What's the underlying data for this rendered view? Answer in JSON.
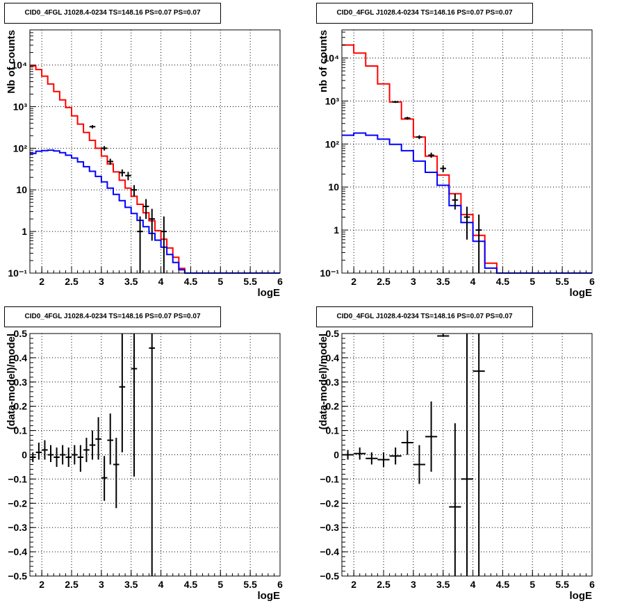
{
  "chart_data": [
    {
      "type": "step",
      "title": "CID0_4FGL J1028.4-0234 TS=148.16 PS=0.07 PS=0.07",
      "xlabel": "logE",
      "ylabel": "Nb of counts",
      "xlim": [
        1.8,
        6.0
      ],
      "ylim": [
        0.1,
        70000
      ],
      "yscale": "log",
      "grid": true,
      "xticks": [
        "2",
        "2.5",
        "3",
        "3.5",
        "4",
        "4.5",
        "5",
        "5.5",
        "6"
      ],
      "xtick_values": [
        2,
        2.5,
        3,
        3.5,
        4,
        4.5,
        5,
        5.5,
        6
      ],
      "yticks": [
        "10⁻¹",
        "1",
        "10",
        "10²",
        "10³",
        "10⁴"
      ],
      "ytick_values": [
        0.1,
        1,
        10,
        100,
        1000,
        10000
      ],
      "bin_edges": [
        1.8,
        1.9,
        2.0,
        2.1,
        2.2,
        2.3,
        2.4,
        2.5,
        2.6,
        2.7,
        2.8,
        2.9,
        3.0,
        3.1,
        3.2,
        3.3,
        3.4,
        3.5,
        3.6,
        3.7,
        3.8,
        3.9,
        4.0,
        4.1,
        4.2,
        4.3,
        4.4,
        4.5,
        4.6,
        4.7,
        4.8,
        4.9,
        5.0,
        5.1,
        5.2,
        5.3,
        5.4,
        5.5,
        5.6,
        5.7,
        5.8,
        5.9,
        6.0
      ],
      "series": [
        {
          "color": "#ff0000",
          "values": [
            9500,
            7800,
            5400,
            3500,
            2300,
            1450,
            950,
            600,
            380,
            240,
            155,
            100,
            65,
            42,
            27,
            17,
            11,
            7,
            4.5,
            2.8,
            1.8,
            1.05,
            0.65,
            0.4,
            0.24,
            0.13,
            0.1,
            0.1,
            0.1,
            0.1,
            0.1,
            0.1,
            0.1,
            0.1,
            0.1,
            0.1,
            0.1,
            0.1,
            0.1,
            0.1,
            0.1,
            0.1
          ]
        },
        {
          "color": "#0000ff",
          "values": [
            75,
            85,
            88,
            90,
            86,
            78,
            68,
            58,
            47,
            36,
            28,
            21,
            15.5,
            11,
            7.8,
            5.5,
            3.8,
            2.7,
            1.85,
            1.3,
            0.9,
            0.62,
            0.42,
            0.28,
            0.18,
            0.12,
            0.1,
            0.1,
            0.1,
            0.1,
            0.1,
            0.1,
            0.1,
            0.1,
            0.1,
            0.1,
            0.1,
            0.1,
            0.1,
            0.1,
            0.1,
            0.1
          ]
        }
      ],
      "points": [
        {
          "x": 2.85,
          "y": 330,
          "ylo": 300,
          "yhi": 360
        },
        {
          "x": 3.05,
          "y": 100,
          "ylo": 88,
          "yhi": 113
        },
        {
          "x": 3.15,
          "y": 48,
          "ylo": 40,
          "yhi": 56
        },
        {
          "x": 3.35,
          "y": 26,
          "ylo": 21,
          "yhi": 31
        },
        {
          "x": 3.45,
          "y": 22,
          "ylo": 17,
          "yhi": 27
        },
        {
          "x": 3.55,
          "y": 10,
          "ylo": 7,
          "yhi": 13
        },
        {
          "x": 3.65,
          "y": 1,
          "ylo": 0.1,
          "yhi": 2.3
        },
        {
          "x": 3.75,
          "y": 4,
          "ylo": 2,
          "yhi": 6
        },
        {
          "x": 3.85,
          "y": 2,
          "ylo": 0.6,
          "yhi": 3.5
        },
        {
          "x": 4.05,
          "y": 1,
          "ylo": 0.1,
          "yhi": 2.3
        }
      ]
    },
    {
      "type": "step",
      "title": "CID0_4FGL J1028.4-0234 TS=148.16 PS=0.07 PS=0.07",
      "xlabel": "logE",
      "ylabel": "nb of counts",
      "xlim": [
        1.8,
        6.0
      ],
      "ylim": [
        0.1,
        45000
      ],
      "yscale": "log",
      "grid": true,
      "xticks": [
        "2",
        "2.5",
        "3",
        "3.5",
        "4",
        "4.5",
        "5",
        "5.5",
        "6"
      ],
      "xtick_values": [
        2,
        2.5,
        3,
        3.5,
        4,
        4.5,
        5,
        5.5,
        6
      ],
      "yticks": [
        "10⁻¹",
        "1",
        "10",
        "10²",
        "10³",
        "10⁴"
      ],
      "ytick_values": [
        0.1,
        1,
        10,
        100,
        1000,
        10000
      ],
      "bin_edges": [
        1.8,
        2.0,
        2.2,
        2.4,
        2.6,
        2.8,
        3.0,
        3.2,
        3.4,
        3.6,
        3.8,
        4.0,
        4.2,
        4.4,
        4.6,
        4.8,
        5.0,
        5.2,
        5.4,
        5.6,
        5.8,
        6.0
      ],
      "series": [
        {
          "color": "#ff0000",
          "values": [
            20000,
            13000,
            6500,
            2500,
            950,
            380,
            145,
            52,
            19,
            7,
            2.3,
            0.75,
            0.17,
            0.1,
            0.1,
            0.1,
            0.1,
            0.1,
            0.1,
            0.1,
            0.1
          ]
        },
        {
          "color": "#0000ff",
          "values": [
            160,
            180,
            160,
            130,
            98,
            70,
            40,
            22,
            11,
            3.7,
            1.5,
            0.55,
            0.13,
            0.1,
            0.1,
            0.1,
            0.1,
            0.1,
            0.1,
            0.1,
            0.1
          ]
        }
      ],
      "points": [
        {
          "x": 2.7,
          "y": 950,
          "ylo": 900,
          "yhi": 1000
        },
        {
          "x": 2.9,
          "y": 400,
          "ylo": 370,
          "yhi": 430
        },
        {
          "x": 3.1,
          "y": 145,
          "ylo": 130,
          "yhi": 160
        },
        {
          "x": 3.3,
          "y": 55,
          "ylo": 48,
          "yhi": 63
        },
        {
          "x": 3.5,
          "y": 27,
          "ylo": 22,
          "yhi": 32
        },
        {
          "x": 3.7,
          "y": 5,
          "ylo": 3,
          "yhi": 7
        },
        {
          "x": 3.9,
          "y": 2,
          "ylo": 0.6,
          "yhi": 3.5
        },
        {
          "x": 4.1,
          "y": 1,
          "ylo": 0.1,
          "yhi": 2.3
        }
      ]
    },
    {
      "type": "scatter",
      "title": "CID0_4FGL J1028.4-0234 TS=148.16 PS=0.07 PS=0.07",
      "xlabel": "logE",
      "ylabel": "(data-model)/model",
      "xlim": [
        1.8,
        6.0
      ],
      "ylim": [
        -0.5,
        0.5
      ],
      "yscale": "linear",
      "grid": true,
      "xticks": [
        "2",
        "2.5",
        "3",
        "3.5",
        "4",
        "4.5",
        "5",
        "5.5",
        "6"
      ],
      "xtick_values": [
        2,
        2.5,
        3,
        3.5,
        4,
        4.5,
        5,
        5.5,
        6
      ],
      "yticks": [
        "−0.5",
        "−0.4",
        "−0.3",
        "−0.2",
        "−0.1",
        "0",
        "0.1",
        "0.2",
        "0.3",
        "0.4",
        "0.5"
      ],
      "ytick_values": [
        -0.5,
        -0.4,
        -0.3,
        -0.2,
        -0.1,
        0,
        0.1,
        0.2,
        0.3,
        0.4,
        0.5
      ],
      "xerr": 0.05,
      "points": [
        {
          "x": 1.85,
          "y": -0.01,
          "ylo": -0.03,
          "yhi": 0.01
        },
        {
          "x": 1.95,
          "y": 0.01,
          "ylo": -0.02,
          "yhi": 0.05
        },
        {
          "x": 2.05,
          "y": 0.02,
          "ylo": -0.02,
          "yhi": 0.06
        },
        {
          "x": 2.15,
          "y": 0.0,
          "ylo": -0.03,
          "yhi": 0.04
        },
        {
          "x": 2.25,
          "y": -0.01,
          "ylo": -0.05,
          "yhi": 0.03
        },
        {
          "x": 2.35,
          "y": 0.0,
          "ylo": -0.04,
          "yhi": 0.04
        },
        {
          "x": 2.45,
          "y": -0.01,
          "ylo": -0.05,
          "yhi": 0.03
        },
        {
          "x": 2.55,
          "y": 0.0,
          "ylo": -0.04,
          "yhi": 0.04
        },
        {
          "x": 2.65,
          "y": -0.01,
          "ylo": -0.07,
          "yhi": 0.04
        },
        {
          "x": 2.75,
          "y": 0.02,
          "ylo": -0.03,
          "yhi": 0.07
        },
        {
          "x": 2.85,
          "y": 0.04,
          "ylo": -0.02,
          "yhi": 0.1
        },
        {
          "x": 2.95,
          "y": 0.065,
          "ylo": -0.02,
          "yhi": 0.155
        },
        {
          "x": 3.05,
          "y": -0.095,
          "ylo": -0.19,
          "yhi": -0.005
        },
        {
          "x": 3.15,
          "y": 0.06,
          "ylo": -0.04,
          "yhi": 0.17
        },
        {
          "x": 3.25,
          "y": -0.04,
          "ylo": -0.22,
          "yhi": 0.07
        },
        {
          "x": 3.35,
          "y": 0.28,
          "ylo": 0.01,
          "yhi": 0.5
        },
        {
          "x": 3.55,
          "y": 0.355,
          "ylo": -0.09,
          "yhi": 0.5
        },
        {
          "x": 3.85,
          "y": 0.44,
          "ylo": -0.5,
          "yhi": 0.5
        }
      ]
    },
    {
      "type": "scatter",
      "title": "CID0_4FGL J1028.4-0234 TS=148.16 PS=0.07 PS=0.07",
      "xlabel": "logE",
      "ylabel": "(data-model)/model",
      "xlim": [
        1.8,
        6.0
      ],
      "ylim": [
        -0.5,
        0.5
      ],
      "yscale": "linear",
      "grid": true,
      "xticks": [
        "2",
        "2.5",
        "3",
        "3.5",
        "4",
        "4.5",
        "5",
        "5.5",
        "6"
      ],
      "xtick_values": [
        2,
        2.5,
        3,
        3.5,
        4,
        4.5,
        5,
        5.5,
        6
      ],
      "yticks": [
        "−0.5",
        "−0.4",
        "−0.3",
        "−0.2",
        "−0.1",
        "0",
        "0.1",
        "0.2",
        "0.3",
        "0.4",
        "0.5"
      ],
      "ytick_values": [
        -0.5,
        -0.4,
        -0.3,
        -0.2,
        -0.1,
        0,
        0.1,
        0.2,
        0.3,
        0.4,
        0.5
      ],
      "xerr": 0.1,
      "points": [
        {
          "x": 1.9,
          "y": 0.0,
          "ylo": -0.02,
          "yhi": 0.02
        },
        {
          "x": 2.1,
          "y": 0.005,
          "ylo": -0.02,
          "yhi": 0.03
        },
        {
          "x": 2.3,
          "y": -0.015,
          "ylo": -0.04,
          "yhi": 0.01
        },
        {
          "x": 2.5,
          "y": -0.02,
          "ylo": -0.05,
          "yhi": 0.01
        },
        {
          "x": 2.7,
          "y": -0.005,
          "ylo": -0.04,
          "yhi": 0.03
        },
        {
          "x": 2.9,
          "y": 0.05,
          "ylo": 0.0,
          "yhi": 0.1
        },
        {
          "x": 3.1,
          "y": -0.04,
          "ylo": -0.12,
          "yhi": 0.04
        },
        {
          "x": 3.3,
          "y": 0.075,
          "ylo": -0.07,
          "yhi": 0.22
        },
        {
          "x": 3.5,
          "y": 0.49,
          "ylo": 0.49,
          "yhi": 0.5
        },
        {
          "x": 3.7,
          "y": -0.215,
          "ylo": -0.5,
          "yhi": 0.13
        },
        {
          "x": 3.9,
          "y": -0.1,
          "ylo": -0.5,
          "yhi": 0.5
        },
        {
          "x": 4.1,
          "y": 0.345,
          "ylo": -0.5,
          "yhi": 0.5
        }
      ]
    }
  ]
}
